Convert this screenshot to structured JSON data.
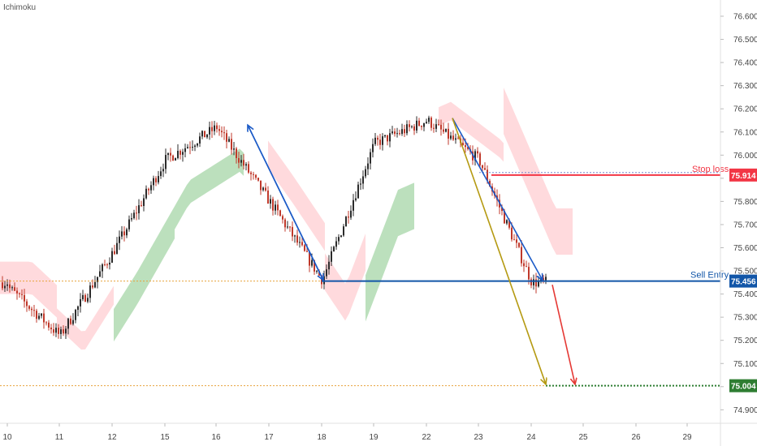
{
  "indicator_label": "Ichimoku",
  "chart_data": {
    "type": "candlestick",
    "indicator": "Ichimoku",
    "x_ticks": [
      "10",
      "11",
      "12",
      "15",
      "16",
      "17",
      "18",
      "19",
      "22",
      "23",
      "24",
      "25",
      "26",
      "29"
    ],
    "y_ticks": [
      "74.900",
      "75.000",
      "75.100",
      "75.200",
      "75.300",
      "75.400",
      "75.500",
      "75.600",
      "75.700",
      "75.800",
      "75.900",
      "76.000",
      "76.100",
      "76.200",
      "76.300",
      "76.400",
      "76.500",
      "76.600"
    ],
    "ylim": [
      74.84,
      76.65
    ],
    "price_path": [
      [
        "10",
        75.43
      ],
      [
        "11",
        75.22
      ],
      [
        "12",
        75.58
      ],
      [
        "15",
        75.98
      ],
      [
        "16",
        76.12
      ],
      [
        "17",
        75.8
      ],
      [
        "18",
        75.46
      ],
      [
        "19",
        76.05
      ],
      [
        "22",
        76.15
      ],
      [
        "23",
        75.98
      ],
      [
        "24",
        75.45
      ]
    ],
    "levels": {
      "stop_loss": {
        "label": "Stop loss",
        "value": "75.914",
        "y": 75.914,
        "color": "#f23645"
      },
      "sell_entry": {
        "label": "Sell Entry",
        "value": "75.456",
        "y": 75.456,
        "color": "#1256a8"
      },
      "take_profit": {
        "value": "75.004",
        "y": 75.004,
        "color": "#2e7d32"
      }
    },
    "arrows": [
      {
        "from": [
          "16",
          76.13
        ],
        "to": [
          "18",
          75.46
        ],
        "color": "#1c5bc7"
      },
      {
        "from": [
          "18",
          75.46
        ],
        "to": [
          "16",
          76.13
        ],
        "color": "#1c5bc7"
      },
      {
        "from": [
          "22",
          76.16
        ],
        "to": [
          "24",
          75.46
        ],
        "color": "#1c5bc7"
      },
      {
        "from": [
          "22",
          76.16
        ],
        "to": [
          "24",
          75.01
        ],
        "color": "#b59a12"
      },
      {
        "from": [
          "24",
          75.44
        ],
        "to": [
          "25",
          75.01
        ],
        "color": "#e53935"
      }
    ],
    "colors": {
      "candle_up": "#2b2b2b",
      "candle_down": "#c0392b",
      "cloud_bull": "#a5d6a7",
      "cloud_bear": "#ffcdd2",
      "reference_dotted": "#e8a33d"
    },
    "grid": false
  }
}
